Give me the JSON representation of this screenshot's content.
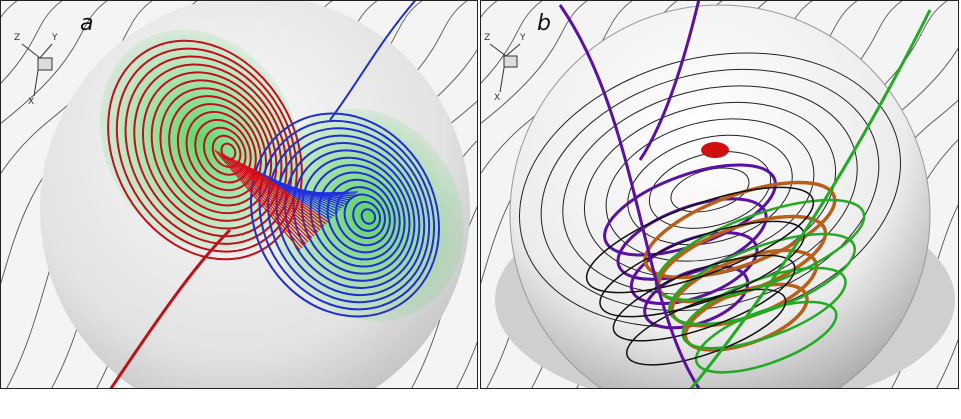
{
  "panels": [
    {
      "label": "a",
      "axes": [
        "Z",
        "Y",
        "X"
      ]
    },
    {
      "label": "b",
      "axes": [
        "Z",
        "Y",
        "X"
      ]
    }
  ]
}
